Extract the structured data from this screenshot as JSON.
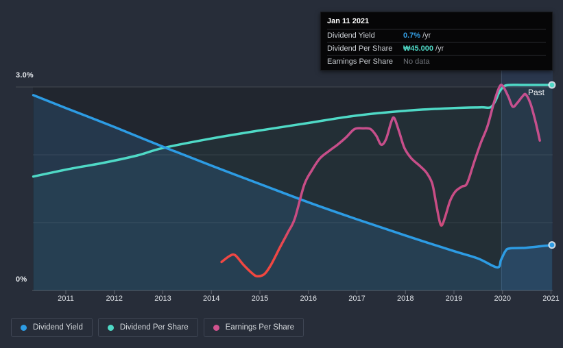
{
  "y_axis": {
    "top_label": "3.0%",
    "bottom_label": "0%"
  },
  "past_label": "Past",
  "tooltip": {
    "date": "Jan 11 2021",
    "rows": [
      {
        "label": "Dividend Yield",
        "value": "0.7%",
        "suffix": "/yr",
        "value_color": "#35a1e8"
      },
      {
        "label": "Dividend Per Share",
        "value": "₩45.000",
        "suffix": "/yr",
        "value_color": "#4fd9c6"
      },
      {
        "label": "Earnings Per Share",
        "value": "No data",
        "suffix": "",
        "value_color": "#73777e"
      }
    ]
  },
  "legend": {
    "items": [
      {
        "label": "Dividend Yield",
        "color": "#2d9ce4"
      },
      {
        "label": "Dividend Per Share",
        "color": "#4fd9c6"
      },
      {
        "label": "Earnings Per Share",
        "color": "#d1538f"
      }
    ]
  },
  "chart_data": {
    "type": "line",
    "ylabel": "",
    "xlabel": "",
    "ylim": [
      0,
      3
    ],
    "y_unit": "%",
    "y_tick_labels": [
      "0%",
      "3.0%"
    ],
    "x_ticks": [
      2011,
      2012,
      2013,
      2014,
      2015,
      2016,
      2017,
      2018,
      2019,
      2020,
      2021
    ],
    "x_range": [
      2010.33,
      2021.05
    ],
    "past_divider_x": 2019.98,
    "grid": "horizontal",
    "legend_position": "bottom-left",
    "series": [
      {
        "name": "Dividend Yield",
        "color": "#2d9ce4",
        "fill": "rgba(56,140,210,0.18)",
        "end_dot": true,
        "points": [
          [
            2010.33,
            2.88
          ],
          [
            2011,
            2.69
          ],
          [
            2012,
            2.41
          ],
          [
            2013,
            2.12
          ],
          [
            2014,
            1.84
          ],
          [
            2015,
            1.57
          ],
          [
            2016,
            1.3
          ],
          [
            2017,
            1.05
          ],
          [
            2018,
            0.81
          ],
          [
            2019,
            0.58
          ],
          [
            2019.5,
            0.47
          ],
          [
            2019.89,
            0.34
          ],
          [
            2019.97,
            0.45
          ],
          [
            2020.06,
            0.58
          ],
          [
            2020.15,
            0.62
          ],
          [
            2020.5,
            0.63
          ],
          [
            2021.02,
            0.67
          ]
        ]
      },
      {
        "name": "Dividend Per Share",
        "color": "#4fd9c6",
        "fill": "rgba(79,217,198,0.05)",
        "end_dot": true,
        "points": [
          [
            2010.33,
            1.68
          ],
          [
            2011.06,
            1.79
          ],
          [
            2011.76,
            1.88
          ],
          [
            2012.47,
            1.99
          ],
          [
            2013,
            2.1
          ],
          [
            2014,
            2.24
          ],
          [
            2015,
            2.36
          ],
          [
            2016,
            2.47
          ],
          [
            2017,
            2.58
          ],
          [
            2018,
            2.65
          ],
          [
            2019,
            2.69
          ],
          [
            2019.55,
            2.7
          ],
          [
            2019.75,
            2.7
          ],
          [
            2019.85,
            2.79
          ],
          [
            2019.93,
            2.92
          ],
          [
            2020.03,
            3.01
          ],
          [
            2020.15,
            3.03
          ],
          [
            2020.4,
            3.03
          ],
          [
            2020.7,
            3.03
          ],
          [
            2021.02,
            3.03
          ]
        ]
      },
      {
        "name": "Earnings Per Share",
        "color": "#c65090",
        "color_low": "#f5473b",
        "end_dot": false,
        "points": [
          [
            2014.21,
            0.42
          ],
          [
            2014.38,
            0.51
          ],
          [
            2014.49,
            0.52
          ],
          [
            2014.66,
            0.38
          ],
          [
            2014.83,
            0.26
          ],
          [
            2014.94,
            0.21
          ],
          [
            2015.09,
            0.24
          ],
          [
            2015.23,
            0.38
          ],
          [
            2015.41,
            0.63
          ],
          [
            2015.58,
            0.86
          ],
          [
            2015.72,
            1.06
          ],
          [
            2015.91,
            1.55
          ],
          [
            2016.07,
            1.77
          ],
          [
            2016.24,
            1.95
          ],
          [
            2016.43,
            2.06
          ],
          [
            2016.6,
            2.15
          ],
          [
            2016.78,
            2.26
          ],
          [
            2016.95,
            2.38
          ],
          [
            2017.13,
            2.39
          ],
          [
            2017.28,
            2.38
          ],
          [
            2017.4,
            2.28
          ],
          [
            2017.5,
            2.15
          ],
          [
            2017.6,
            2.23
          ],
          [
            2017.71,
            2.49
          ],
          [
            2017.77,
            2.54
          ],
          [
            2017.87,
            2.34
          ],
          [
            2017.98,
            2.1
          ],
          [
            2018.12,
            1.95
          ],
          [
            2018.29,
            1.84
          ],
          [
            2018.43,
            1.74
          ],
          [
            2018.55,
            1.58
          ],
          [
            2018.63,
            1.29
          ],
          [
            2018.7,
            1.03
          ],
          [
            2018.75,
            0.96
          ],
          [
            2018.82,
            1.09
          ],
          [
            2018.92,
            1.32
          ],
          [
            2019.03,
            1.46
          ],
          [
            2019.16,
            1.53
          ],
          [
            2019.27,
            1.58
          ],
          [
            2019.41,
            1.88
          ],
          [
            2019.55,
            2.17
          ],
          [
            2019.69,
            2.42
          ],
          [
            2019.82,
            2.76
          ],
          [
            2019.93,
            2.99
          ],
          [
            2020.0,
            3.02
          ],
          [
            2020.12,
            2.86
          ],
          [
            2020.21,
            2.71
          ],
          [
            2020.31,
            2.77
          ],
          [
            2020.41,
            2.86
          ],
          [
            2020.48,
            2.89
          ],
          [
            2020.58,
            2.75
          ],
          [
            2020.68,
            2.49
          ],
          [
            2020.77,
            2.21
          ]
        ]
      }
    ]
  }
}
